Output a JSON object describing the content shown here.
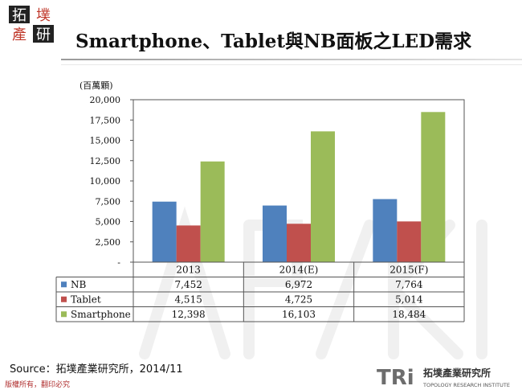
{
  "header": {
    "logo_chars": [
      "拓",
      "墣",
      "產",
      "研"
    ],
    "title": "Smartphone、Tablet與NB面板之LED需求"
  },
  "chart_data": {
    "type": "bar",
    "title": "",
    "unit_label": "(百萬顆)",
    "ylim": [
      0,
      20000
    ],
    "y_ticks": [
      "20,000",
      "17,500",
      "15,000",
      "12,500",
      "10,000",
      "7,500",
      "5,000",
      "2,500",
      "-"
    ],
    "categories": [
      "2013",
      "2014(E)",
      "2015(F)"
    ],
    "series": [
      {
        "name": "NB",
        "color": "#4f81bd",
        "values": [
          7452,
          6972,
          7764
        ],
        "labels": [
          "7,452",
          "6,972",
          "7,764"
        ]
      },
      {
        "name": "Tablet",
        "color": "#c0504d",
        "values": [
          4515,
          4725,
          5014
        ],
        "labels": [
          "4,515",
          "4,725",
          "5,014"
        ]
      },
      {
        "name": "Smartphone",
        "color": "#9bbb59",
        "values": [
          12398,
          16103,
          18484
        ],
        "labels": [
          "12,398",
          "16,103",
          "18,484"
        ]
      }
    ],
    "grid": false,
    "legend": "data-table"
  },
  "footer": {
    "source": "Source：拓墣產業研究所，2014/11",
    "copyright": "版權所有，翻印必究",
    "tri_mark": "TRi",
    "tri_name_cn": "拓墣產業研究所",
    "tri_name_en": "TOPOLOGY RESEARCH INSTITUTE"
  }
}
